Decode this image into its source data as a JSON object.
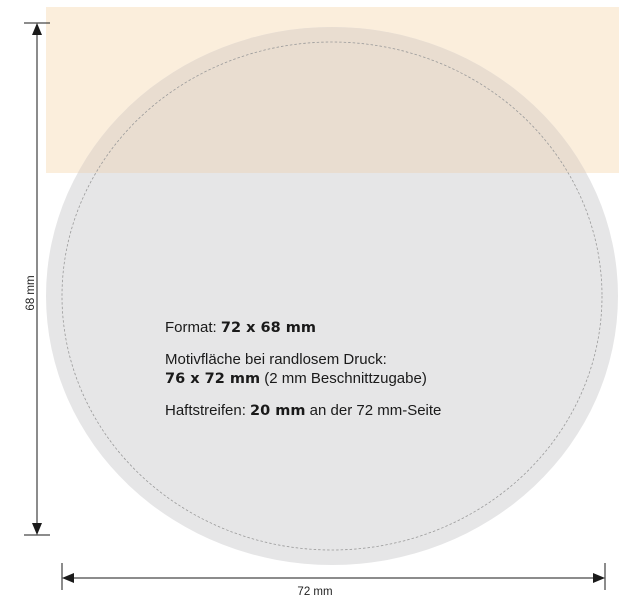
{
  "format": {
    "label": "Format:",
    "value": "72 x 68 mm"
  },
  "motif": {
    "label": "Motivfläche bei randlosem Druck:",
    "value": "76 x 72 mm",
    "note": "(2 mm Beschnittzugabe)"
  },
  "adhesive": {
    "label": "Haftstreifen:",
    "value": "20 mm",
    "note": "an der 72 mm-Seite"
  },
  "dimensions": {
    "width_label": "72 mm",
    "height_label": "68 mm"
  },
  "colors": {
    "disc": "#e6e6e7",
    "adhesive_strip": "#fbeedc",
    "overlap": "#e9ddd0",
    "cut_line": "#9a9a9a",
    "dimension_line": "#1a1a1a"
  }
}
